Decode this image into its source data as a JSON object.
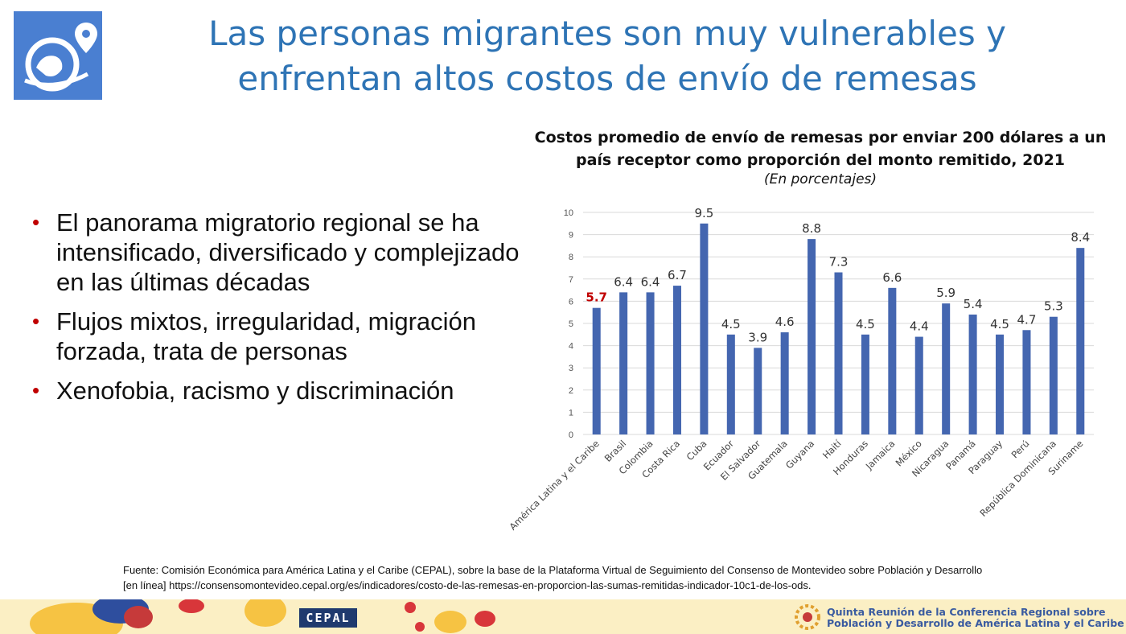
{
  "header": {
    "title_line1": "Las personas migrantes son muy vulnerables y",
    "title_line2": "enfrentan altos costos de envío de remesas",
    "logo_icon": "globe-location-pin-icon"
  },
  "bullets": [
    "El panorama migratorio regional se ha intensificado, diversificado y complejizado en las últimas décadas",
    "Flujos mixtos, irregularidad, migración forzada, trata de personas",
    "Xenofobia, racismo y discriminación"
  ],
  "chart_data": {
    "type": "bar",
    "title": "Costos promedio de envío de remesas por enviar 200 dólares a un país receptor como proporción del monto remitido, 2021",
    "subtitle": "(En porcentajes)",
    "categories": [
      "América Latina y el Caribe",
      "Brasil",
      "Colombia",
      "Costa Rica",
      "Cuba",
      "Ecuador",
      "El Salvador",
      "Guatemala",
      "Guyana",
      "Haití",
      "Honduras",
      "Jamaica",
      "México",
      "Nicaragua",
      "Panamá",
      "Paraguay",
      "Perú",
      "República Dominicana",
      "Suriname"
    ],
    "values": [
      5.7,
      6.4,
      6.4,
      6.7,
      9.5,
      4.5,
      3.9,
      4.6,
      8.8,
      7.3,
      4.5,
      6.6,
      4.4,
      5.9,
      5.4,
      4.5,
      4.7,
      5.3,
      8.4
    ],
    "value_labels": [
      "5.7",
      "6.4",
      "6.4",
      "6.7",
      "9.5",
      "4.5",
      "3.9",
      "4.6",
      "8.8",
      "7.3",
      "4.5",
      "6.6",
      "4.4",
      "5.9",
      "5.4",
      "4.5",
      "4.7",
      "5.3",
      "8.4"
    ],
    "yticks": [
      "0",
      "1",
      "2",
      "3",
      "4",
      "5",
      "6",
      "7",
      "8",
      "9",
      "10"
    ],
    "ylim": [
      0,
      10
    ],
    "grid": true,
    "bar_color": "#4466b0",
    "highlight_label_color": "#c00000",
    "label_color": "#333333"
  },
  "source": {
    "line1": "Fuente: Comisión Económica para América Latina y el Caribe (CEPAL), sobre la base de la Plataforma Virtual de Seguimiento del Consenso de Montevideo sobre Población y Desarrollo",
    "line2": "[en línea] https://consensomontevideo.cepal.org/es/indicadores/costo-de-las-remesas-en-proporcion-las-sumas-remitidas-indicador-10c1-de-los-ods."
  },
  "footer": {
    "cepal": "CEPAL",
    "conference_line1": "Quinta Reunión de la Conferencia Regional sobre",
    "conference_line2": "Población y Desarrollo de América Latina y el Caribe"
  }
}
